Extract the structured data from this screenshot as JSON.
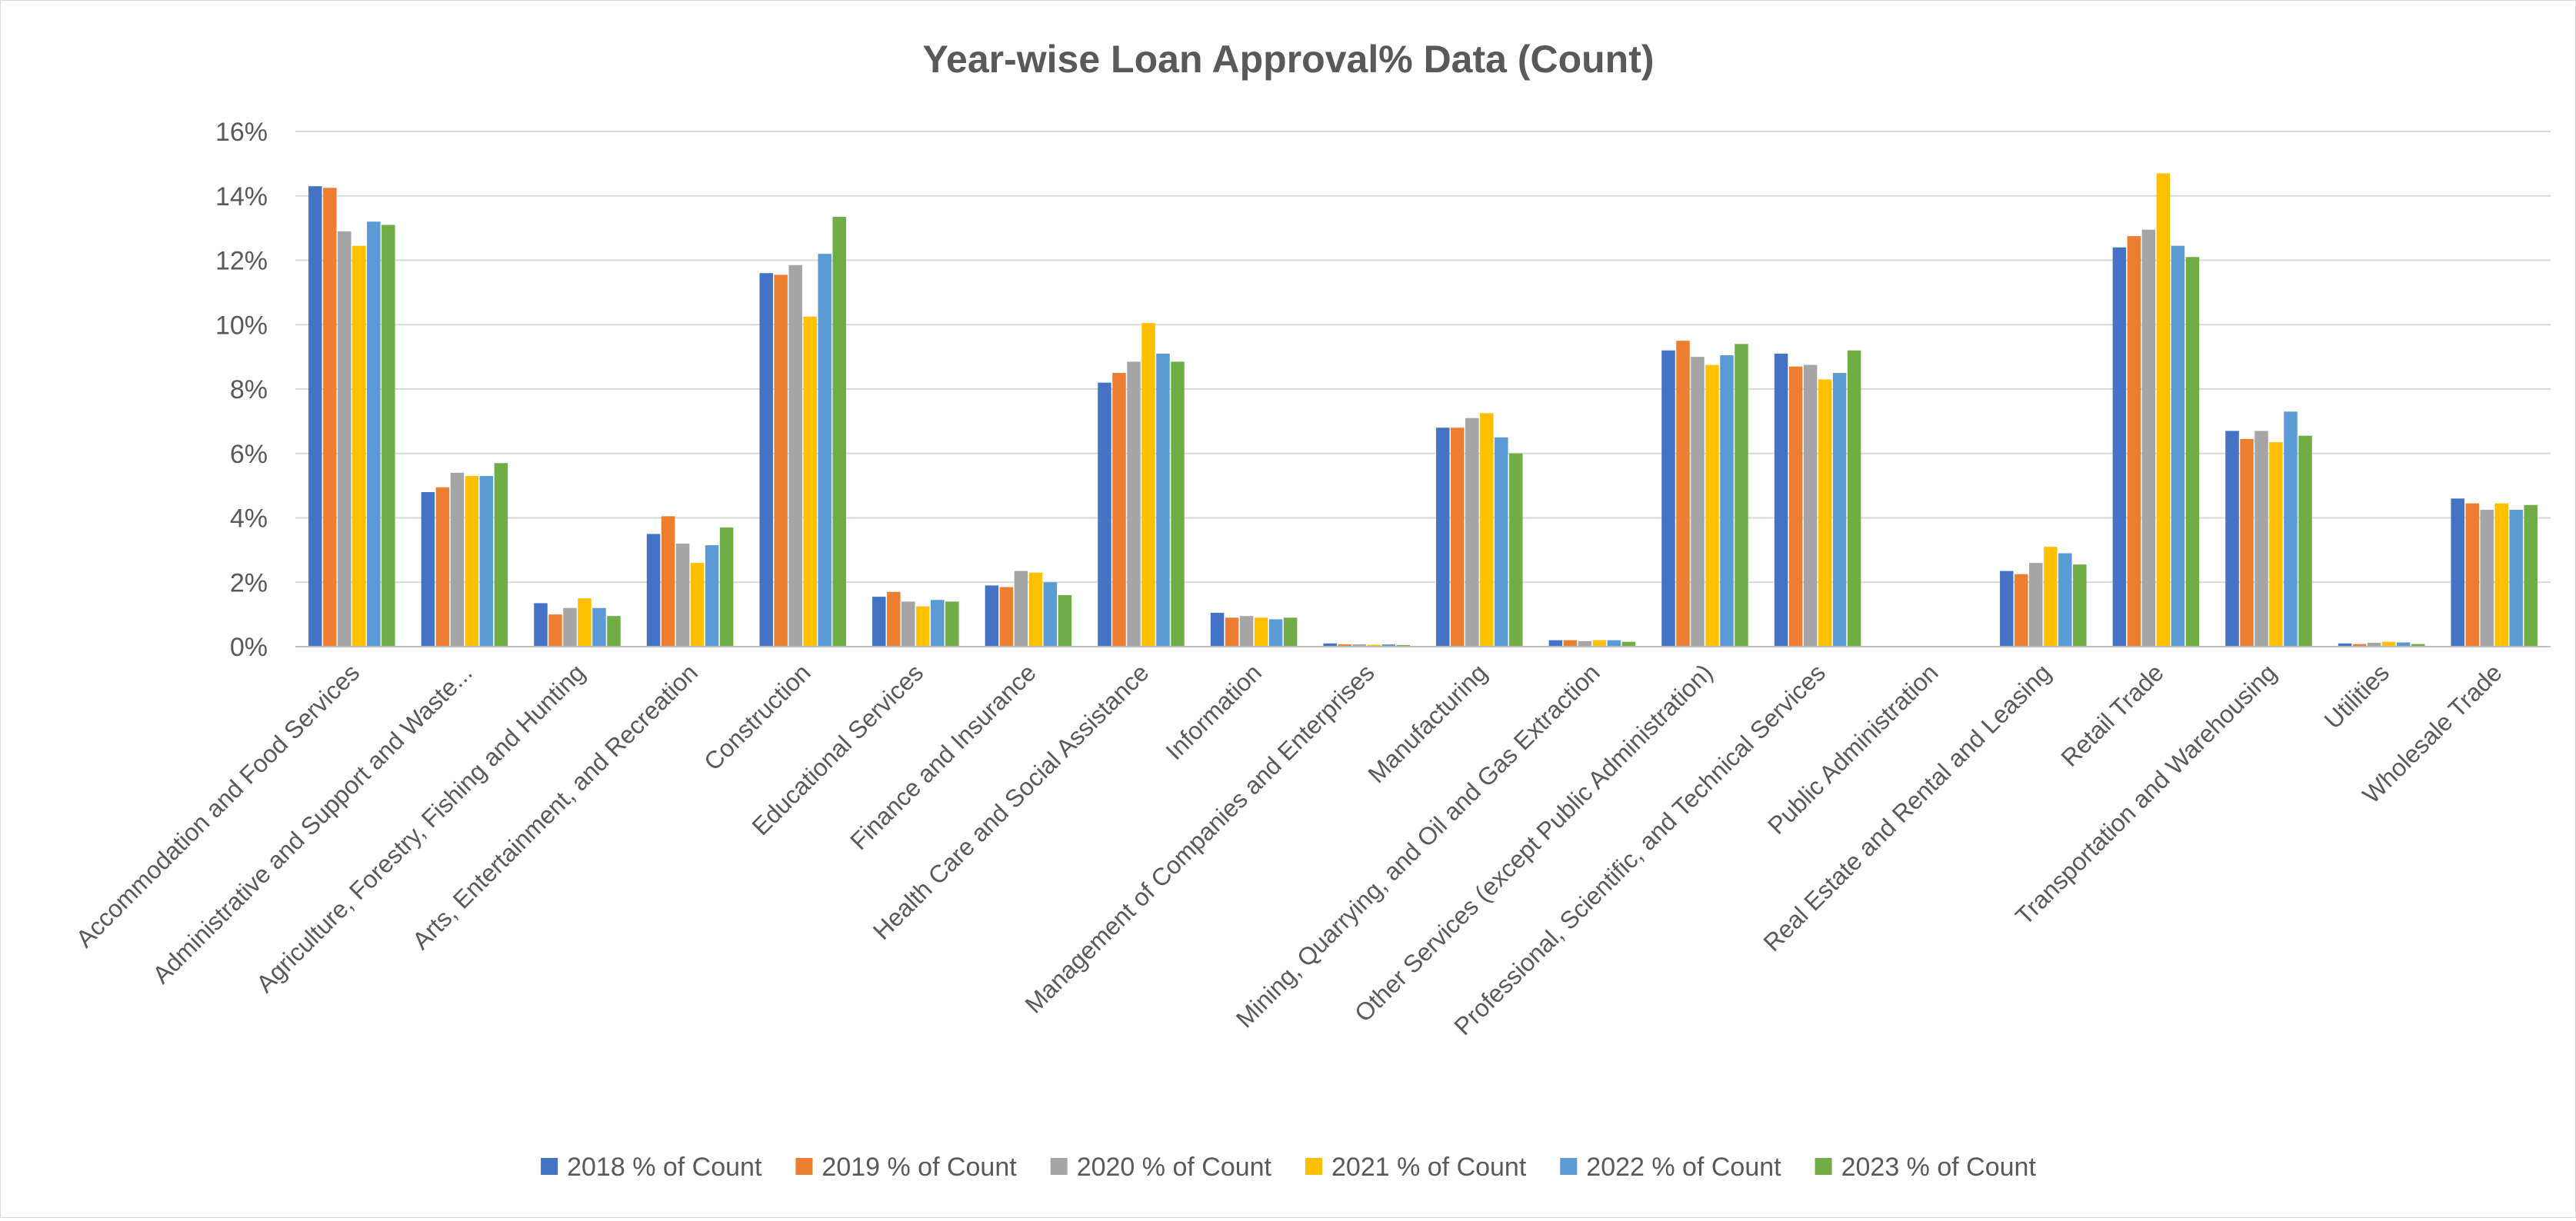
{
  "chart_data": {
    "type": "bar",
    "title": "Year-wise Loan Approval% Data (Count)",
    "xlabel": "",
    "ylabel": "",
    "ylim": [
      0,
      16
    ],
    "yticks": [
      "0%",
      "2%",
      "4%",
      "6%",
      "8%",
      "10%",
      "12%",
      "14%",
      "16%"
    ],
    "grid": true,
    "legend_position": "bottom",
    "categories": [
      "Accommodation and Food Services",
      "Administrative and Support and Waste...",
      "Agriculture, Forestry, Fishing and Hunting",
      "Arts, Entertainment, and Recreation",
      "Construction",
      "Educational Services",
      "Finance and Insurance",
      "Health Care and Social Assistance",
      "Information",
      "Management of Companies and Enterprises",
      "Manufacturing",
      "Mining, Quarrying, and Oil and Gas Extraction",
      "Other Services (except Public Administration)",
      "Professional, Scientific, and Technical Services",
      "Public Administration",
      "Real Estate and Rental and Leasing",
      "Retail Trade",
      "Transportation and Warehousing",
      "Utilities",
      "Wholesale Trade"
    ],
    "series": [
      {
        "name": "2018 % of Count",
        "color": "#4472C4",
        "values": [
          14.3,
          4.8,
          1.35,
          3.5,
          11.6,
          1.55,
          1.9,
          8.2,
          1.05,
          0.1,
          6.8,
          0.2,
          9.2,
          9.1,
          0,
          2.35,
          12.4,
          6.7,
          0.1,
          4.6
        ]
      },
      {
        "name": "2019 % of Count",
        "color": "#ED7D31",
        "values": [
          14.25,
          4.95,
          1.0,
          4.05,
          11.55,
          1.7,
          1.85,
          8.5,
          0.9,
          0.07,
          6.8,
          0.2,
          9.5,
          8.7,
          0,
          2.25,
          12.75,
          6.45,
          0.08,
          4.45
        ]
      },
      {
        "name": "2020 % of Count",
        "color": "#A5A5A5",
        "values": [
          12.9,
          5.4,
          1.2,
          3.2,
          11.85,
          1.4,
          2.35,
          8.85,
          0.95,
          0.07,
          7.1,
          0.17,
          9.0,
          8.75,
          0,
          2.6,
          12.95,
          6.7,
          0.12,
          4.25
        ]
      },
      {
        "name": "2021 % of Count",
        "color": "#FFC000",
        "values": [
          12.45,
          5.3,
          1.5,
          2.6,
          10.25,
          1.25,
          2.3,
          10.05,
          0.9,
          0.06,
          7.25,
          0.2,
          8.75,
          8.3,
          0,
          3.1,
          14.7,
          6.35,
          0.15,
          4.45
        ]
      },
      {
        "name": "2022 % of Count",
        "color": "#5B9BD5",
        "values": [
          13.2,
          5.3,
          1.2,
          3.15,
          12.2,
          1.45,
          2.0,
          9.1,
          0.85,
          0.07,
          6.5,
          0.2,
          9.05,
          8.5,
          0,
          2.9,
          12.45,
          7.3,
          0.13,
          4.25
        ]
      },
      {
        "name": "2023 % of Count",
        "color": "#70AD47",
        "values": [
          13.1,
          5.7,
          0.95,
          3.7,
          13.35,
          1.4,
          1.6,
          8.85,
          0.9,
          0.05,
          6.0,
          0.15,
          9.4,
          9.2,
          0,
          2.55,
          12.1,
          6.55,
          0.08,
          4.4
        ]
      }
    ]
  },
  "colors": {
    "gridline": "#d9d9d9",
    "axis": "#bfbfbf",
    "text": "#595959"
  }
}
